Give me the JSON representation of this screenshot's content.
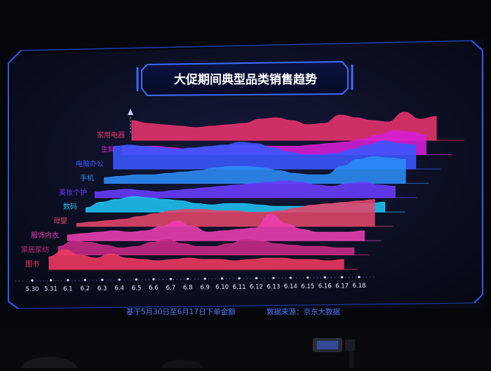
{
  "chart_data": {
    "type": "area",
    "subtype": "ridgeline",
    "title": "大促期间典型品类销售趋势",
    "x": [
      "5.30",
      "5.31",
      "6.1",
      "6.2",
      "6.3",
      "6.4",
      "6.5",
      "6.6",
      "6.7",
      "6.8",
      "6.9",
      "6.10",
      "6.11",
      "6.12",
      "6.13",
      "6.14",
      "6.15",
      "6.16",
      "6.17",
      "6.18"
    ],
    "series": [
      {
        "name": "家用电器",
        "color": "#e8336d",
        "values": [
          0.7,
          0.6,
          0.55,
          0.5,
          0.45,
          0.5,
          0.55,
          0.6,
          0.75,
          0.8,
          0.7,
          0.55,
          0.6,
          0.9,
          0.8,
          0.7,
          0.65,
          1.0,
          0.75,
          0.85
        ]
      },
      {
        "name": "生鲜",
        "color": "#d61fd8",
        "values": [
          0.3,
          0.3,
          0.3,
          0.25,
          0.2,
          0.25,
          0.3,
          0.35,
          0.35,
          0.3,
          0.3,
          0.3,
          0.35,
          0.4,
          0.45,
          0.55,
          0.7,
          0.85,
          0.8,
          0.7
        ]
      },
      {
        "name": "电脑办公",
        "color": "#3a58ff",
        "values": [
          0.8,
          0.85,
          0.8,
          0.75,
          0.7,
          0.75,
          0.8,
          0.85,
          0.95,
          0.9,
          0.75,
          0.6,
          0.5,
          0.5,
          0.55,
          0.7,
          0.85,
          1.0,
          0.9,
          0.85
        ]
      },
      {
        "name": "手机",
        "color": "#2c8cf7",
        "values": [
          0.2,
          0.25,
          0.3,
          0.3,
          0.35,
          0.4,
          0.45,
          0.55,
          0.6,
          0.6,
          0.55,
          0.45,
          0.35,
          0.3,
          0.3,
          0.6,
          0.85,
          0.95,
          0.9,
          0.85
        ]
      },
      {
        "name": "美妆个护",
        "color": "#6a3cff",
        "values": [
          0.2,
          0.25,
          0.3,
          0.25,
          0.2,
          0.25,
          0.3,
          0.35,
          0.4,
          0.45,
          0.5,
          0.55,
          0.6,
          0.55,
          0.45,
          0.4,
          0.5,
          0.55,
          0.45,
          0.4
        ]
      },
      {
        "name": "数码",
        "color": "#1ec3f2",
        "values": [
          0.15,
          0.35,
          0.45,
          0.55,
          0.5,
          0.45,
          0.4,
          0.3,
          0.25,
          0.3,
          0.3,
          0.25,
          0.2,
          0.2,
          0.2,
          0.25,
          0.3,
          0.3,
          0.3,
          0.35
        ]
      },
      {
        "name": "母婴",
        "color": "#e2456a",
        "values": [
          0.1,
          0.15,
          0.2,
          0.25,
          0.35,
          0.45,
          0.55,
          0.6,
          0.6,
          0.55,
          0.55,
          0.5,
          0.5,
          0.55,
          0.65,
          0.75,
          0.8,
          0.85,
          0.9,
          0.95
        ]
      },
      {
        "name": "服饰内衣",
        "color": "#ea3fb0",
        "values": [
          0.2,
          0.25,
          0.3,
          0.35,
          0.3,
          0.35,
          0.5,
          0.7,
          0.5,
          0.3,
          0.35,
          0.4,
          0.45,
          0.95,
          0.6,
          0.4,
          0.3,
          0.3,
          0.3,
          0.35
        ]
      },
      {
        "name": "家居家纺",
        "color": "#c92a87",
        "values": [
          0.3,
          0.5,
          0.45,
          0.35,
          0.25,
          0.3,
          0.45,
          0.55,
          0.4,
          0.3,
          0.3,
          0.4,
          0.55,
          0.5,
          0.4,
          0.35,
          0.3,
          0.3,
          0.25,
          0.25
        ]
      },
      {
        "name": "图书",
        "color": "#f03a61",
        "values": [
          0.45,
          0.7,
          0.5,
          0.4,
          0.55,
          0.4,
          0.35,
          0.3,
          0.35,
          0.4,
          0.35,
          0.35,
          0.3,
          0.35,
          0.4,
          0.4,
          0.35,
          0.35,
          0.3,
          0.35
        ]
      }
    ],
    "xlabel": "基于5月30日至6月17日下单金额",
    "source": "数据来源：京东大数据",
    "ylabel": "",
    "grid": false,
    "legend": "left"
  },
  "colors": {
    "background": "#05060a",
    "screen": "#0b0f24",
    "frame": "#2f5bff",
    "caption": "#4d7dff",
    "tick": "#e8ecff"
  }
}
